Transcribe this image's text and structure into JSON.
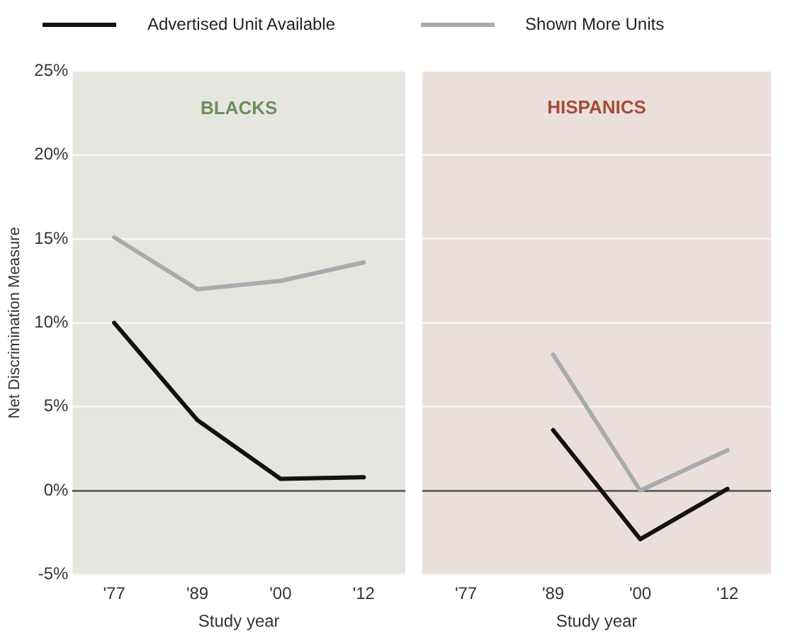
{
  "chart_data": [
    {
      "type": "line",
      "title": "BLACKS",
      "xlabel": "Study year",
      "ylabel": "Net Discrimination Measure",
      "categories": [
        "'77",
        "'89",
        "'00",
        "'12"
      ],
      "series": [
        {
          "name": "Advertised Unit Available",
          "color": "#111111",
          "values": [
            10,
            4.2,
            0.7,
            0.8
          ]
        },
        {
          "name": "Shown More Units",
          "color": "#a8abad",
          "values": [
            15.1,
            12.0,
            12.5,
            13.6
          ]
        }
      ],
      "ylim": [
        -5,
        25
      ],
      "yticks": [
        {
          "value": -5,
          "label": "-5%"
        },
        {
          "value": 0,
          "label": "0%"
        },
        {
          "value": 5,
          "label": "5%"
        },
        {
          "value": 10,
          "label": "10%"
        },
        {
          "value": 15,
          "label": "15%"
        },
        {
          "value": 20,
          "label": "20%"
        },
        {
          "value": 25,
          "label": "25%"
        }
      ],
      "grid": "y",
      "legend": "top",
      "marker": "none"
    },
    {
      "type": "line",
      "title": "HISPANICS",
      "xlabel": "Study year",
      "categories": [
        "'77",
        "'89",
        "'00",
        "'12"
      ],
      "series": [
        {
          "color": "#111111",
          "values": [
            null,
            3.6,
            -2.9,
            0.1
          ]
        },
        {
          "color": "#a8abad",
          "values": [
            null,
            8.1,
            0,
            2.4
          ]
        }
      ],
      "ylim": [
        -5,
        25
      ],
      "yticks": [
        -5,
        0,
        5,
        10,
        15,
        20,
        25
      ],
      "grid": "y",
      "tick_labels": "x",
      "marker": "none"
    }
  ]
}
